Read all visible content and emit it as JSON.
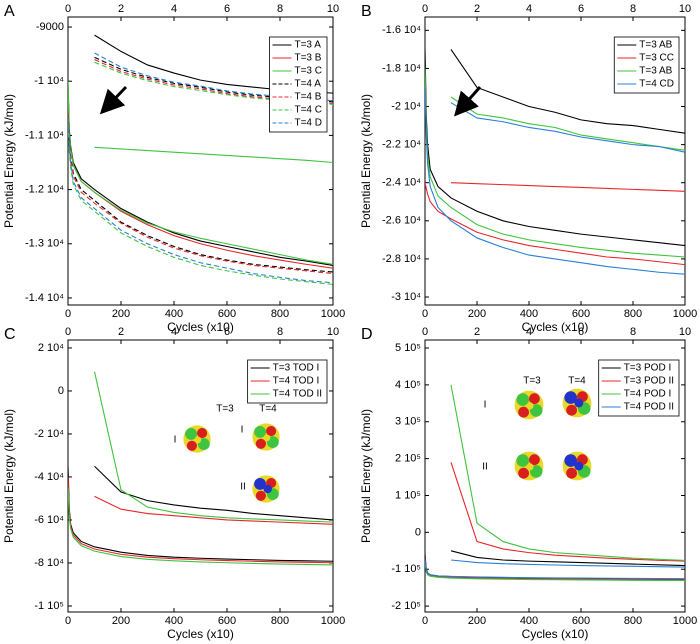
{
  "chart_data": [
    {
      "type": "line",
      "panel": "A",
      "xlabel": "Cycles (x10)",
      "ylabel": "Potential Energy (kJ/mol)",
      "x": [
        0,
        5,
        10,
        20,
        50,
        100,
        200,
        300,
        400,
        500,
        600,
        700,
        800,
        900,
        1000
      ],
      "x2": [
        1,
        2,
        3,
        4,
        5,
        6,
        7,
        8,
        9,
        10
      ],
      "xlim": [
        0,
        1000
      ],
      "xticks": [
        0,
        200,
        400,
        600,
        800,
        1000
      ],
      "x2lim": [
        0,
        10
      ],
      "x2ticks": [
        0,
        2,
        4,
        6,
        8,
        10
      ],
      "ylim": [
        -14130,
        -8815
      ],
      "yticks": [
        -9000,
        {
          "value": -10000,
          "label": "-1 10⁴"
        },
        {
          "value": -11000,
          "label": "-1.1 10⁴"
        },
        {
          "value": -12000,
          "label": "-1.2 10⁴"
        },
        {
          "value": -13000,
          "label": "-1.3 10⁴"
        },
        {
          "value": -14000,
          "label": "-1.4 10⁴"
        }
      ],
      "legend": "upper right",
      "series": [
        {
          "name": "T=3 A",
          "color": "#000000",
          "dashed": false,
          "values": [
            -10000,
            -10900,
            -11200,
            -11500,
            -11800,
            -12000,
            -12350,
            -12600,
            -12800,
            -12950,
            -13050,
            -13150,
            -13250,
            -13320,
            -13400
          ],
          "values2": [
            -9150,
            -9450,
            -9700,
            -9850,
            -9980,
            -10060,
            -10110,
            -10160,
            -10190,
            -10220
          ]
        },
        {
          "name": "T=3 B",
          "color": "#e8262b",
          "dashed": false,
          "values": [
            -10100,
            -11000,
            -11250,
            -11550,
            -11850,
            -12050,
            -12400,
            -12650,
            -12850,
            -13000,
            -13120,
            -13220,
            -13300,
            -13380,
            -13450
          ],
          "values2": [
            null,
            null,
            null,
            null,
            null,
            null,
            null,
            null,
            null,
            null
          ]
        },
        {
          "name": "T=3 C",
          "color": "#3ec43e",
          "dashed": false,
          "values": [
            -10000,
            -10950,
            -11250,
            -11550,
            -11850,
            -12050,
            -12380,
            -12620,
            -12780,
            -12900,
            -13000,
            -13100,
            -13200,
            -13300,
            -13380
          ],
          "values2": [
            -11220,
            -11250,
            -11280,
            -11310,
            -11340,
            -11370,
            -11400,
            -11430,
            -11460,
            -11500
          ]
        },
        {
          "name": "T=4 A",
          "color": "#000000",
          "dashed": true,
          "values": [
            -10600,
            -11100,
            -11400,
            -11700,
            -12000,
            -12200,
            -12600,
            -12850,
            -13050,
            -13200,
            -13300,
            -13380,
            -13430,
            -13480,
            -13520
          ],
          "values2": [
            -9560,
            -9780,
            -9930,
            -10040,
            -10110,
            -10200,
            -10260,
            -10300,
            -10340,
            -10380
          ]
        },
        {
          "name": "T=4 B",
          "color": "#e8262b",
          "dashed": true,
          "values": [
            -10600,
            -11150,
            -11450,
            -11750,
            -12050,
            -12250,
            -12620,
            -12880,
            -13080,
            -13220,
            -13320,
            -13400,
            -13450,
            -13500,
            -13550
          ],
          "values2": [
            -9600,
            -9820,
            -9960,
            -10070,
            -10140,
            -10230,
            -10290,
            -10330,
            -10370,
            -10410
          ]
        },
        {
          "name": "T=4 C",
          "color": "#3ec43e",
          "dashed": true,
          "values": [
            -10800,
            -11300,
            -11600,
            -11900,
            -12200,
            -12400,
            -12800,
            -13050,
            -13250,
            -13400,
            -13500,
            -13580,
            -13650,
            -13700,
            -13750
          ],
          "values2": [
            -9650,
            -9850,
            -9990,
            -10100,
            -10170,
            -10250,
            -10310,
            -10350,
            -10390,
            -10430
          ]
        },
        {
          "name": "T=4 D",
          "color": "#2a7fd4",
          "dashed": true,
          "values": [
            -10700,
            -11200,
            -11500,
            -11850,
            -12150,
            -12350,
            -12750,
            -13000,
            -13200,
            -13350,
            -13450,
            -13550,
            -13620,
            -13680,
            -13720
          ],
          "values2": [
            -9480,
            -9740,
            -9900,
            -10020,
            -10090,
            -10180,
            -10240,
            -10280,
            -10320,
            -10360
          ]
        }
      ]
    },
    {
      "type": "line",
      "panel": "B",
      "xlabel": "Cycles (x10)",
      "ylabel": "Potential Energy (kJ/mol)",
      "x": [
        0,
        5,
        10,
        20,
        50,
        100,
        200,
        300,
        400,
        500,
        600,
        700,
        800,
        900,
        1000
      ],
      "x2": [
        1,
        2,
        3,
        4,
        5,
        6,
        7,
        8,
        9,
        10
      ],
      "xlim": [
        0,
        1000
      ],
      "xticks": [
        0,
        200,
        400,
        600,
        800,
        1000
      ],
      "x2lim": [
        0,
        10
      ],
      "x2ticks": [
        0,
        2,
        4,
        6,
        8,
        10
      ],
      "ylim": [
        -30420,
        -15300
      ],
      "yticks": [
        {
          "value": -16000,
          "label": "-1.6 10⁴"
        },
        {
          "value": -18000,
          "label": "-1.8 10⁴"
        },
        {
          "value": -20000,
          "label": "-2 10⁴"
        },
        {
          "value": -22000,
          "label": "-2.2 10⁴"
        },
        {
          "value": -24000,
          "label": "-2.4 10⁴"
        },
        {
          "value": -26000,
          "label": "-2.6 10⁴"
        },
        {
          "value": -28000,
          "label": "-2.8 10⁴"
        },
        {
          "value": -30000,
          "label": "-3 10⁴"
        }
      ],
      "legend": "upper right",
      "series": [
        {
          "name": "T=3 AB",
          "color": "#000000",
          "dashed": false,
          "values": [
            -17000,
            -20500,
            -22000,
            -23300,
            -24200,
            -24800,
            -25500,
            -26000,
            -26300,
            -26500,
            -26700,
            -26850,
            -27000,
            -27150,
            -27300
          ],
          "values2": [
            -17000,
            -19000,
            -19500,
            -20000,
            -20300,
            -20700,
            -20900,
            -21000,
            -21200,
            -21400
          ]
        },
        {
          "name": "T=3 CC",
          "color": "#e8262b",
          "dashed": false,
          "values": [
            -24000,
            -24300,
            -24600,
            -25000,
            -25500,
            -25900,
            -26600,
            -27000,
            -27300,
            -27500,
            -27700,
            -27900,
            -28000,
            -28150,
            -28300
          ],
          "values2": [
            -24000,
            -24050,
            -24100,
            -24150,
            -24200,
            -24250,
            -24300,
            -24350,
            -24400,
            -24450
          ]
        },
        {
          "name": "T=3 AB",
          "color": "#3ec43e",
          "dashed": false,
          "values": [
            -18000,
            -21000,
            -22500,
            -23700,
            -24700,
            -25300,
            -26200,
            -26700,
            -27000,
            -27200,
            -27400,
            -27550,
            -27700,
            -27800,
            -27900
          ],
          "values2": [
            -19500,
            -20400,
            -20600,
            -20900,
            -21100,
            -21500,
            -21700,
            -21900,
            -22100,
            -22300
          ]
        },
        {
          "name": "T=4 CD",
          "color": "#2a7fd4",
          "dashed": false,
          "values": [
            -19000,
            -21500,
            -23000,
            -24200,
            -25300,
            -26000,
            -26900,
            -27400,
            -27800,
            -28000,
            -28200,
            -28400,
            -28550,
            -28700,
            -28800
          ],
          "values2": [
            -19800,
            -20600,
            -20800,
            -21100,
            -21300,
            -21600,
            -21800,
            -22000,
            -22100,
            -22400
          ]
        }
      ]
    },
    {
      "type": "line",
      "panel": "C",
      "xlabel": "Cycles (x10)",
      "ylabel": "Potential Energy (kJ/mol)",
      "x": [
        0,
        5,
        10,
        20,
        50,
        100,
        200,
        300,
        400,
        500,
        600,
        700,
        800,
        900,
        1000
      ],
      "x2": [
        1,
        2,
        3,
        4,
        5,
        6,
        7,
        8,
        9,
        10
      ],
      "xlim": [
        0,
        1000
      ],
      "xticks": [
        0,
        200,
        400,
        600,
        800,
        1000
      ],
      "x2lim": [
        0,
        10
      ],
      "x2ticks": [
        0,
        2,
        4,
        6,
        8,
        10
      ],
      "ylim": [
        -102800,
        23700
      ],
      "yticks": [
        {
          "value": 20000,
          "label": "2 10⁴"
        },
        0,
        {
          "value": -20000,
          "label": "-2 10⁴"
        },
        {
          "value": -40000,
          "label": "-4 10⁴"
        },
        {
          "value": -60000,
          "label": "-6 10⁴"
        },
        {
          "value": -80000,
          "label": "-8 10⁴"
        },
        {
          "value": -100000,
          "label": "-1 10⁵"
        }
      ],
      "legend": "upper right",
      "annotations": [
        "T=3",
        "T=4",
        "I",
        "I",
        "II"
      ],
      "series": [
        {
          "name": "T=3 TOD I",
          "color": "#000000",
          "dashed": false,
          "values": [
            -35000,
            -55000,
            -62000,
            -66000,
            -70000,
            -72500,
            -75000,
            -76500,
            -77300,
            -77800,
            -78200,
            -78500,
            -78800,
            -79000,
            -79200
          ],
          "values2": [
            -35000,
            -47000,
            -51000,
            -53000,
            -54500,
            -55500,
            -57000,
            -58000,
            -59000,
            -60000
          ]
        },
        {
          "name": "T=4 TOD I",
          "color": "#e8262b",
          "dashed": false,
          "values": [
            -40000,
            -57000,
            -63000,
            -67000,
            -71000,
            -73500,
            -76000,
            -77300,
            -78000,
            -78500,
            -78900,
            -79200,
            -79500,
            -79700,
            -79900
          ],
          "values2": [
            -49000,
            -55000,
            -57000,
            -58000,
            -59000,
            -60000,
            -60500,
            -61000,
            -61500,
            -62000
          ]
        },
        {
          "name": "T=4 TOD II",
          "color": "#3ec43e",
          "dashed": false,
          "values": [
            -45000,
            -59000,
            -64000,
            -68000,
            -72000,
            -74500,
            -77000,
            -78300,
            -79000,
            -79500,
            -79900,
            -80200,
            -80500,
            -80700,
            -80900
          ],
          "values2": [
            9000,
            -46000,
            -54000,
            -56500,
            -58000,
            -59000,
            -59500,
            -60000,
            -60500,
            -61000
          ]
        }
      ]
    },
    {
      "type": "line",
      "panel": "D",
      "xlabel": "Cycles (x10)",
      "ylabel": "Potential Energy (kJ/mol)",
      "x": [
        0,
        5,
        10,
        20,
        50,
        100,
        200,
        300,
        400,
        500,
        600,
        700,
        800,
        900,
        1000
      ],
      "x2": [
        1,
        2,
        3,
        4,
        5,
        6,
        7,
        8,
        9,
        10
      ],
      "xlim": [
        0,
        1000
      ],
      "xticks": [
        0,
        200,
        400,
        600,
        800,
        1000
      ],
      "x2lim": [
        0,
        10
      ],
      "x2ticks": [
        0,
        2,
        4,
        6,
        8,
        10
      ],
      "ylim": [
        -216000,
        521700
      ],
      "yticks": [
        {
          "value": 500000,
          "label": "5 10⁵"
        },
        {
          "value": 400000,
          "label": "4 10⁵"
        },
        {
          "value": 300000,
          "label": "3 10⁵"
        },
        {
          "value": 200000,
          "label": "2 10⁵"
        },
        {
          "value": 100000,
          "label": "1 10⁵"
        },
        0,
        {
          "value": -100000,
          "label": "-1 10⁵"
        },
        {
          "value": -200000,
          "label": "-2 10⁵"
        }
      ],
      "legend": "upper right",
      "annotations": [
        "T=3",
        "T=4",
        "I",
        "II"
      ],
      "series": [
        {
          "name": "T=3 POD I",
          "color": "#000000",
          "dashed": false,
          "values": [
            -60000,
            -100000,
            -110000,
            -115000,
            -118000,
            -120000,
            -122000,
            -123000,
            -124000,
            -124500,
            -125000,
            -125500,
            -126000,
            -126300,
            -126500
          ],
          "values2": [
            -50000,
            -68000,
            -75000,
            -78000,
            -80000,
            -82000,
            -84000,
            -86000,
            -88000,
            -90000
          ]
        },
        {
          "name": "T=3 POD II",
          "color": "#e8262b",
          "dashed": false,
          "values": [
            -70000,
            -105000,
            -113000,
            -117000,
            -120000,
            -122000,
            -124000,
            -125000,
            -126000,
            -126500,
            -127000,
            -127500,
            -128000,
            -128300,
            -128500
          ],
          "values2": [
            190000,
            -25000,
            -45000,
            -55000,
            -62000,
            -66000,
            -70000,
            -73000,
            -76000,
            -78000
          ]
        },
        {
          "name": "T=4 POD I",
          "color": "#3ec43e",
          "dashed": false,
          "values": [
            -80000,
            -108000,
            -115000,
            -119000,
            -122000,
            -124000,
            -126000,
            -127000,
            -128000,
            -128500,
            -129000,
            -129500,
            -130000,
            -130300,
            -130500
          ],
          "values2": [
            400000,
            25000,
            -25000,
            -45000,
            -55000,
            -60000,
            -65000,
            -70000,
            -73000,
            -76000
          ]
        },
        {
          "name": "T=4 POD II",
          "color": "#2a7fd4",
          "dashed": false,
          "values": [
            -75000,
            -103000,
            -111000,
            -115000,
            -118000,
            -119500,
            -121000,
            -122000,
            -123000,
            -123500,
            -124000,
            -124500,
            -125000,
            -125300,
            -125500
          ],
          "values2": [
            -75000,
            -82000,
            -85000,
            -87000,
            -88500,
            -90000,
            -91000,
            -92000,
            -93000,
            -94000
          ]
        }
      ]
    }
  ]
}
